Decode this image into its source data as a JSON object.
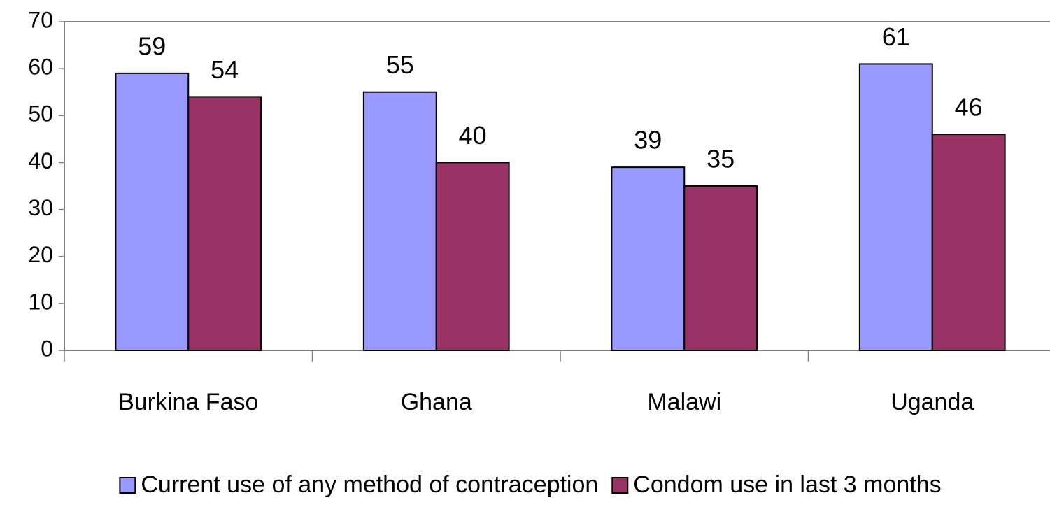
{
  "chart_data": {
    "type": "bar",
    "categories": [
      "Burkina Faso",
      "Ghana",
      "Malawi",
      "Uganda"
    ],
    "series": [
      {
        "name": "Current use of any method of contraception",
        "color": "#9999ff",
        "values": [
          59,
          55,
          39,
          61
        ]
      },
      {
        "name": "Condom use in last 3 months",
        "color": "#993366",
        "values": [
          54,
          40,
          35,
          46
        ]
      }
    ],
    "ylim": [
      0,
      70
    ],
    "yticks": [
      0,
      10,
      20,
      30,
      40,
      50,
      60,
      70
    ],
    "legend": "bottom"
  }
}
